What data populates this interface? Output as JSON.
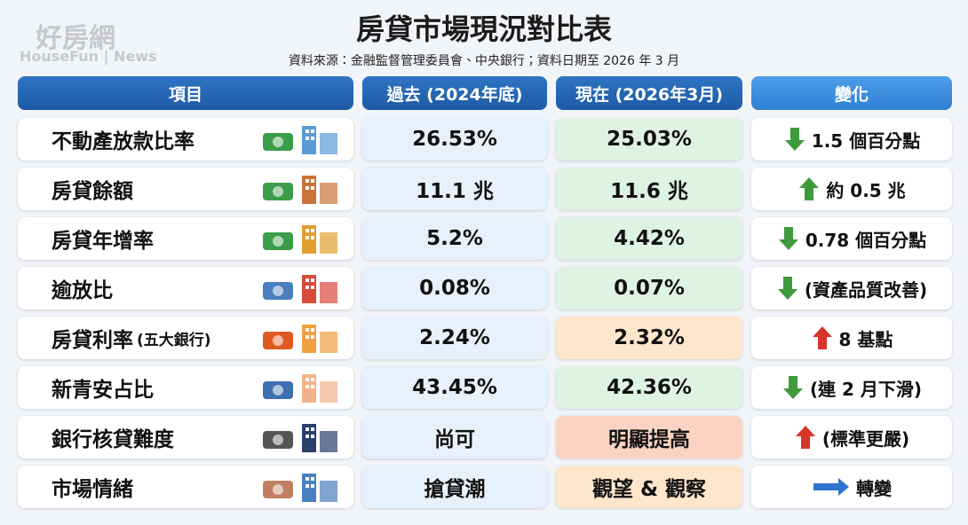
{
  "watermark": {
    "brand": "好房網",
    "sub": "HouseFun | News"
  },
  "header": {
    "title": "房貸市場現況對比表",
    "source": "資料來源：金融監督管理委員會、中央銀行；資料日期至 2026 年 3 月"
  },
  "table": {
    "columns": [
      "項目",
      "過去 (2024年底)",
      "現在 (2026年3月)",
      "變化"
    ],
    "rows": [
      {
        "item": "不動產放款比率",
        "past": "26.53%",
        "now": "25.03%",
        "change": "1.5 個百分點"
      },
      {
        "item": "房貸餘額",
        "past": "11.1 兆",
        "now": "11.6 兆",
        "change": "約 0.5 兆"
      },
      {
        "item": "房貸年增率",
        "past": "5.2%",
        "now": "4.42%",
        "change": "0.78 個百分點"
      },
      {
        "item": "逾放比",
        "past": "0.08%",
        "now": "0.07%",
        "change": "(資產品質改善)"
      },
      {
        "item": "房貸利率",
        "note": "(五大銀行)",
        "past": "2.24%",
        "now": "2.32%",
        "change": "8 基點"
      },
      {
        "item": "新青安占比",
        "past": "43.45%",
        "now": "42.36%",
        "change": "(連 2 月下滑)"
      },
      {
        "item": "銀行核貸難度",
        "past": "尚可",
        "now": "明顯提高",
        "change": "(標準更嚴)"
      },
      {
        "item": "市場情緒",
        "past": "搶貸潮",
        "now": "觀望 & 觀察",
        "change": "轉變"
      }
    ]
  }
}
